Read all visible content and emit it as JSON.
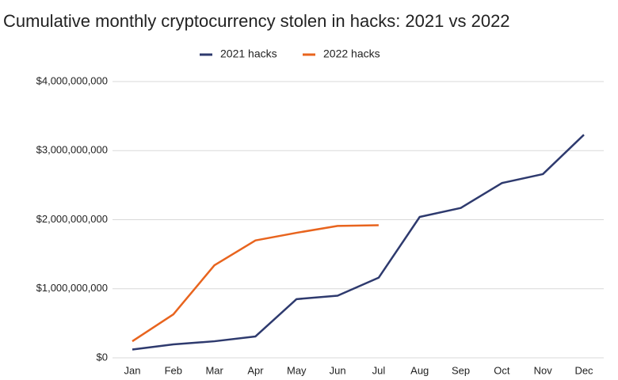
{
  "chart_data": {
    "type": "line",
    "title": "Cumulative monthly cryptocurrency stolen in hacks: 2021 vs 2022",
    "categories": [
      "Jan",
      "Feb",
      "Mar",
      "Apr",
      "May",
      "Jun",
      "Jul",
      "Aug",
      "Sep",
      "Oct",
      "Nov",
      "Dec"
    ],
    "series": [
      {
        "name": "2021 hacks",
        "color": "#2e3a6e",
        "values": [
          120000000,
          195000000,
          240000000,
          310000000,
          850000000,
          900000000,
          1160000000,
          2040000000,
          2170000000,
          2530000000,
          2660000000,
          3230000000
        ]
      },
      {
        "name": "2022 hacks",
        "color": "#e8641e",
        "values": [
          240000000,
          630000000,
          1340000000,
          1700000000,
          1810000000,
          1910000000,
          1920000000,
          null,
          null,
          null,
          null,
          null
        ]
      }
    ],
    "ylim": [
      0,
      4000000000
    ],
    "yticks": [
      {
        "value": 0,
        "label": "$0"
      },
      {
        "value": 1000000000,
        "label": "$1,000,000,000"
      },
      {
        "value": 2000000000,
        "label": "$2,000,000,000"
      },
      {
        "value": 3000000000,
        "label": "$3,000,000,000"
      },
      {
        "value": 4000000000,
        "label": "$4,000,000,000"
      }
    ],
    "grid": true,
    "legend": "top"
  }
}
